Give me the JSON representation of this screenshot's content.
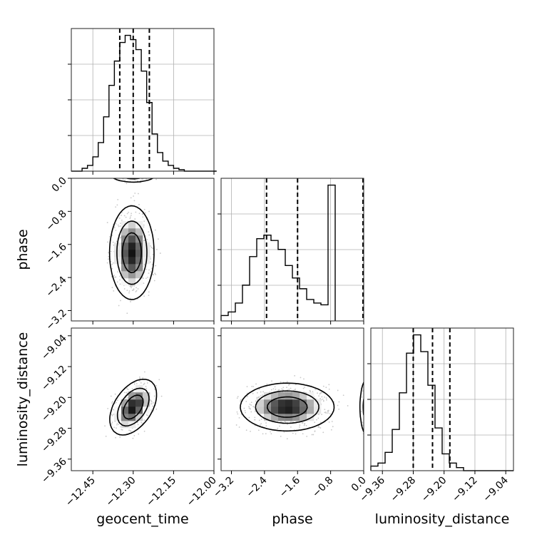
{
  "chart_data": {
    "type": "corner",
    "parameters": [
      "geocent_time",
      "phase",
      "luminosity_distance"
    ],
    "axis_labels": {
      "x": [
        "geocent_time",
        "phase",
        "luminosity_distance"
      ],
      "y": [
        "phase",
        "luminosity_distance"
      ]
    },
    "ranges": {
      "geocent_time": [
        -12.53,
        -12.0
      ],
      "phase": [
        -3.45,
        0.0
      ],
      "luminosity_distance": [
        -9.39,
        -9.02
      ]
    },
    "ticks": {
      "geocent_time": [
        -12.45,
        -12.3,
        -12.15,
        -12.0
      ],
      "phase": [
        -3.2,
        -2.4,
        -1.6,
        -0.8,
        0.0
      ],
      "luminosity_distance": [
        -9.36,
        -9.28,
        -9.2,
        -9.12,
        -9.04
      ]
    },
    "tick_labels": {
      "geocent_time": [
        "−12.45",
        "−12.30",
        "−12.15",
        "−12.00"
      ],
      "phase": [
        "−3.2",
        "−2.4",
        "−1.6",
        "−0.8",
        "0.0"
      ],
      "luminosity_distance": [
        "−9.36",
        "−9.28",
        "−9.20",
        "−9.12",
        "−9.04"
      ]
    },
    "quantiles": {
      "geocent_time": [
        -12.35,
        -12.3,
        -12.24
      ],
      "phase": [
        -2.35,
        -1.6,
        0.0
      ],
      "luminosity_distance": [
        -9.28,
        -9.23,
        -9.185
      ]
    },
    "histograms": {
      "geocent_time": {
        "bin_start": -12.53,
        "bin_width": 0.02,
        "counts": [
          0,
          0,
          2,
          4,
          10,
          20,
          38,
          60,
          77,
          90,
          95,
          92,
          85,
          70,
          48,
          26,
          13,
          7,
          4,
          2,
          1,
          0,
          0,
          0,
          0,
          0,
          0
        ]
      },
      "phase": {
        "bin_start": -3.45,
        "bin_width": 0.1725,
        "counts": [
          3,
          5,
          10,
          20,
          36,
          46,
          48,
          45,
          40,
          31,
          24,
          18,
          12,
          10,
          9,
          76
        ]
      },
      "luminosity_distance": {
        "bin_start": -9.39,
        "bin_width": 0.0185,
        "counts": [
          3,
          5,
          12,
          27,
          51,
          77,
          89,
          78,
          56,
          28,
          11,
          5,
          2,
          0,
          0,
          0,
          0,
          0,
          0,
          0
        ]
      }
    },
    "bivariate": [
      {
        "x": "geocent_time",
        "y": "phase",
        "clusters": [
          {
            "mean": [
              -12.305,
              -1.8
            ],
            "sd": [
              0.04,
              0.55
            ],
            "rho": 0,
            "weight": 0.7
          },
          {
            "mean": [
              -12.3,
              0.0
            ],
            "sd": [
              0.045,
              0.05
            ],
            "rho": 0,
            "weight": 0.3
          }
        ]
      },
      {
        "x": "geocent_time",
        "y": "luminosity_distance",
        "clusters": [
          {
            "mean": [
              -12.3,
              -9.225
            ],
            "sd": [
              0.042,
              0.035
            ],
            "rho": 0.45,
            "weight": 1.0
          }
        ]
      },
      {
        "x": "phase",
        "y": "luminosity_distance",
        "clusters": [
          {
            "mean": [
              -1.85,
              -9.225
            ],
            "sd": [
              0.55,
              0.03
            ],
            "rho": 0,
            "weight": 0.7
          },
          {
            "mean": [
              0.0,
              -9.225
            ],
            "sd": [
              0.05,
              0.04
            ],
            "rho": 0,
            "weight": 0.3
          }
        ]
      }
    ]
  }
}
